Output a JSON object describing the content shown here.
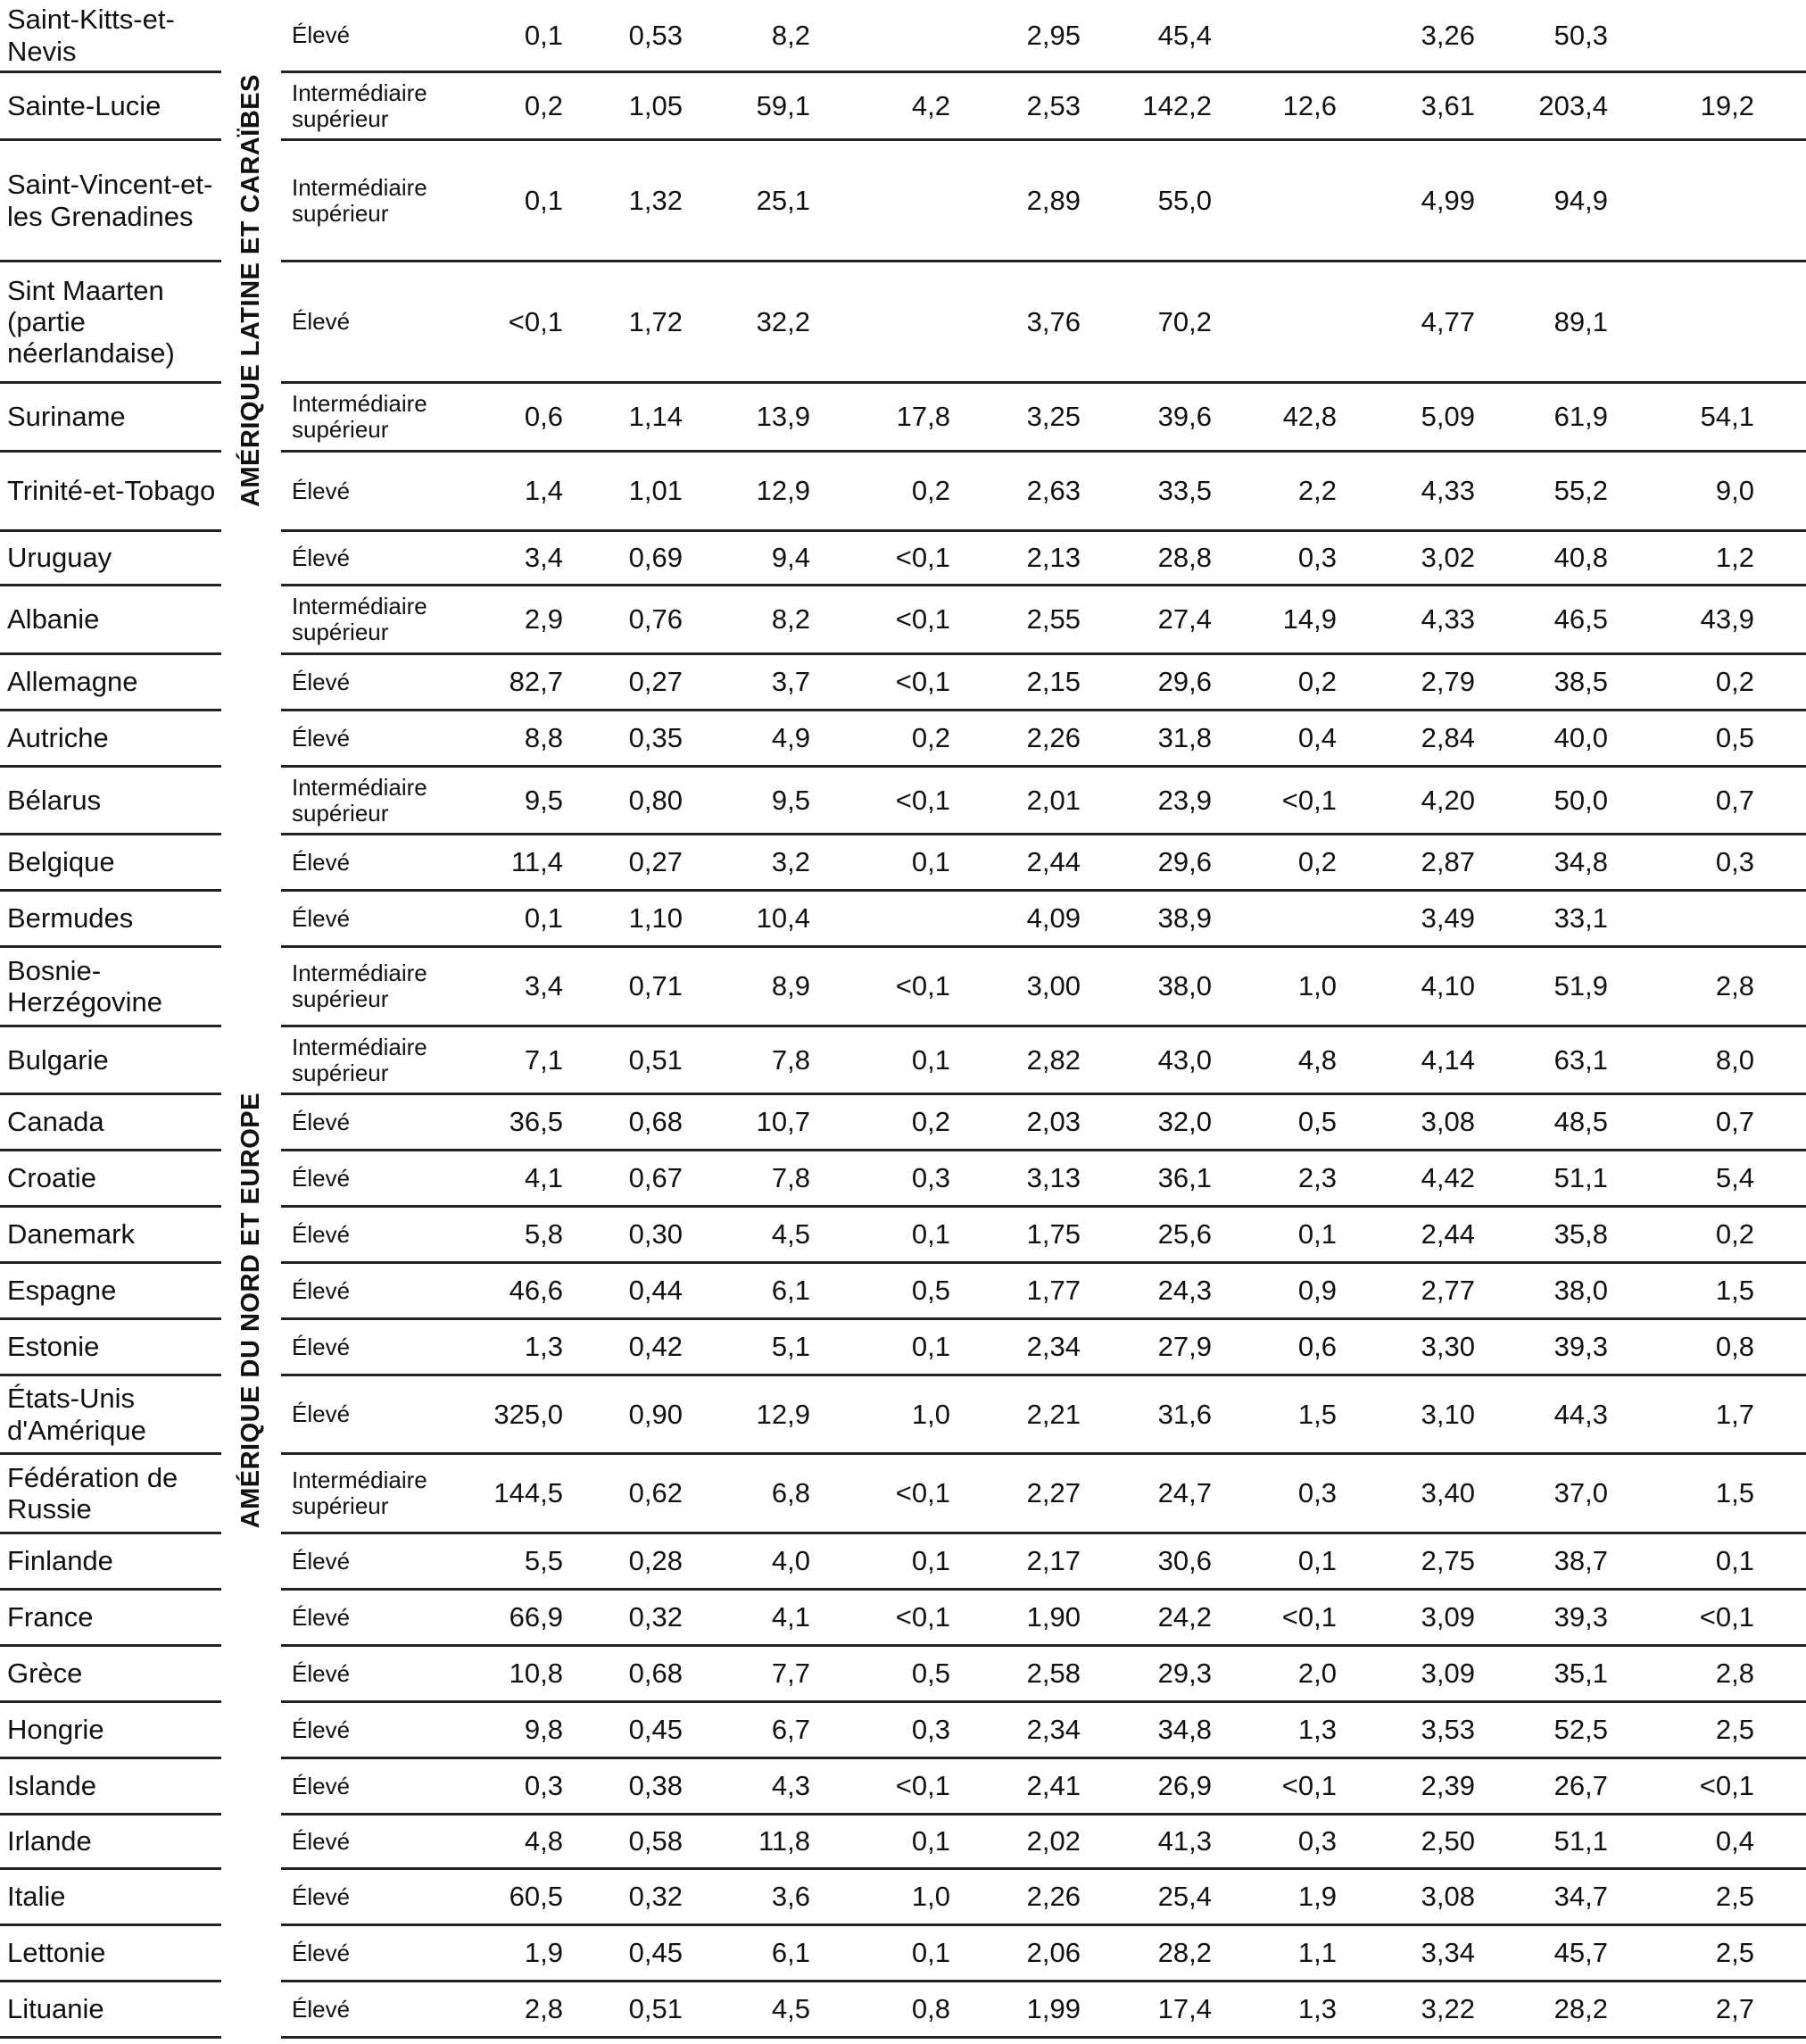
{
  "table": {
    "sections": [
      {
        "region": "AMÉRIQUE LATINE ET CARAÏBES",
        "rows": [
          {
            "country": "Saint-Kitts-et-Nevis",
            "income": "Élevé",
            "values": [
              "0,1",
              "0,53",
              "8,2",
              null,
              "2,95",
              "45,4",
              null,
              "3,26",
              "50,3",
              null
            ]
          },
          {
            "country": "Sainte-Lucie",
            "income": "Intermédiaire supérieur",
            "values": [
              "0,2",
              "1,05",
              "59,1",
              "4,2",
              "2,53",
              "142,2",
              "12,6",
              "3,61",
              "203,4",
              "19,2"
            ]
          },
          {
            "country": "Saint-Vincent-et-les Grenadines",
            "income": "Intermédiaire supérieur",
            "values": [
              "0,1",
              "1,32",
              "25,1",
              null,
              "2,89",
              "55,0",
              null,
              "4,99",
              "94,9",
              null
            ]
          },
          {
            "country": "Sint Maarten (partie néerlandaise)",
            "income": "Élevé",
            "values": [
              "<0,1",
              "1,72",
              "32,2",
              null,
              "3,76",
              "70,2",
              null,
              "4,77",
              "89,1",
              null
            ]
          },
          {
            "country": "Suriname",
            "income": "Intermédiaire supérieur",
            "values": [
              "0,6",
              "1,14",
              "13,9",
              "17,8",
              "3,25",
              "39,6",
              "42,8",
              "5,09",
              "61,9",
              "54,1"
            ]
          },
          {
            "country": "Trinité-et-Tobago",
            "income": "Élevé",
            "values": [
              "1,4",
              "1,01",
              "12,9",
              "0,2",
              "2,63",
              "33,5",
              "2,2",
              "4,33",
              "55,2",
              "9,0"
            ]
          },
          {
            "country": "Uruguay",
            "income": "Élevé",
            "values": [
              "3,4",
              "0,69",
              "9,4",
              "<0,1",
              "2,13",
              "28,8",
              "0,3",
              "3,02",
              "40,8",
              "1,2"
            ]
          }
        ]
      },
      {
        "region": "AMÉRIQUE DU NORD ET EUROPE",
        "rows": [
          {
            "country": "Albanie",
            "income": "Intermédiaire supérieur",
            "values": [
              "2,9",
              "0,76",
              "8,2",
              "<0,1",
              "2,55",
              "27,4",
              "14,9",
              "4,33",
              "46,5",
              "43,9"
            ]
          },
          {
            "country": "Allemagne",
            "income": "Élevé",
            "values": [
              "82,7",
              "0,27",
              "3,7",
              "<0,1",
              "2,15",
              "29,6",
              "0,2",
              "2,79",
              "38,5",
              "0,2"
            ]
          },
          {
            "country": "Autriche",
            "income": "Élevé",
            "values": [
              "8,8",
              "0,35",
              "4,9",
              "0,2",
              "2,26",
              "31,8",
              "0,4",
              "2,84",
              "40,0",
              "0,5"
            ]
          },
          {
            "country": "Bélarus",
            "income": "Intermédiaire supérieur",
            "values": [
              "9,5",
              "0,80",
              "9,5",
              "<0,1",
              "2,01",
              "23,9",
              "<0,1",
              "4,20",
              "50,0",
              "0,7"
            ]
          },
          {
            "country": "Belgique",
            "income": "Élevé",
            "values": [
              "11,4",
              "0,27",
              "3,2",
              "0,1",
              "2,44",
              "29,6",
              "0,2",
              "2,87",
              "34,8",
              "0,3"
            ]
          },
          {
            "country": "Bermudes",
            "income": "Élevé",
            "values": [
              "0,1",
              "1,10",
              "10,4",
              null,
              "4,09",
              "38,9",
              null,
              "3,49",
              "33,1",
              null
            ]
          },
          {
            "country": "Bosnie-Herzégovine",
            "income": "Intermédiaire supérieur",
            "values": [
              "3,4",
              "0,71",
              "8,9",
              "<0,1",
              "3,00",
              "38,0",
              "1,0",
              "4,10",
              "51,9",
              "2,8"
            ]
          },
          {
            "country": "Bulgarie",
            "income": "Intermédiaire supérieur",
            "values": [
              "7,1",
              "0,51",
              "7,8",
              "0,1",
              "2,82",
              "43,0",
              "4,8",
              "4,14",
              "63,1",
              "8,0"
            ]
          },
          {
            "country": "Canada",
            "income": "Élevé",
            "values": [
              "36,5",
              "0,68",
              "10,7",
              "0,2",
              "2,03",
              "32,0",
              "0,5",
              "3,08",
              "48,5",
              "0,7"
            ]
          },
          {
            "country": "Croatie",
            "income": "Élevé",
            "values": [
              "4,1",
              "0,67",
              "7,8",
              "0,3",
              "3,13",
              "36,1",
              "2,3",
              "4,42",
              "51,1",
              "5,4"
            ]
          },
          {
            "country": "Danemark",
            "income": "Élevé",
            "values": [
              "5,8",
              "0,30",
              "4,5",
              "0,1",
              "1,75",
              "25,6",
              "0,1",
              "2,44",
              "35,8",
              "0,2"
            ]
          },
          {
            "country": "Espagne",
            "income": "Élevé",
            "values": [
              "46,6",
              "0,44",
              "6,1",
              "0,5",
              "1,77",
              "24,3",
              "0,9",
              "2,77",
              "38,0",
              "1,5"
            ]
          },
          {
            "country": "Estonie",
            "income": "Élevé",
            "values": [
              "1,3",
              "0,42",
              "5,1",
              "0,1",
              "2,34",
              "27,9",
              "0,6",
              "3,30",
              "39,3",
              "0,8"
            ]
          },
          {
            "country": "États-Unis d'Amérique",
            "income": "Élevé",
            "values": [
              "325,0",
              "0,90",
              "12,9",
              "1,0",
              "2,21",
              "31,6",
              "1,5",
              "3,10",
              "44,3",
              "1,7"
            ]
          },
          {
            "country": "Fédération de Russie",
            "income": "Intermédiaire supérieur",
            "values": [
              "144,5",
              "0,62",
              "6,8",
              "<0,1",
              "2,27",
              "24,7",
              "0,3",
              "3,40",
              "37,0",
              "1,5"
            ]
          },
          {
            "country": "Finlande",
            "income": "Élevé",
            "values": [
              "5,5",
              "0,28",
              "4,0",
              "0,1",
              "2,17",
              "30,6",
              "0,1",
              "2,75",
              "38,7",
              "0,1"
            ]
          },
          {
            "country": "France",
            "income": "Élevé",
            "values": [
              "66,9",
              "0,32",
              "4,1",
              "<0,1",
              "1,90",
              "24,2",
              "<0,1",
              "3,09",
              "39,3",
              "<0,1"
            ]
          },
          {
            "country": "Grèce",
            "income": "Élevé",
            "values": [
              "10,8",
              "0,68",
              "7,7",
              "0,5",
              "2,58",
              "29,3",
              "2,0",
              "3,09",
              "35,1",
              "2,8"
            ]
          },
          {
            "country": "Hongrie",
            "income": "Élevé",
            "values": [
              "9,8",
              "0,45",
              "6,7",
              "0,3",
              "2,34",
              "34,8",
              "1,3",
              "3,53",
              "52,5",
              "2,5"
            ]
          },
          {
            "country": "Islande",
            "income": "Élevé",
            "values": [
              "0,3",
              "0,38",
              "4,3",
              "<0,1",
              "2,41",
              "26,9",
              "<0,1",
              "2,39",
              "26,7",
              "<0,1"
            ]
          },
          {
            "country": "Irlande",
            "income": "Élevé",
            "values": [
              "4,8",
              "0,58",
              "11,8",
              "0,1",
              "2,02",
              "41,3",
              "0,3",
              "2,50",
              "51,1",
              "0,4"
            ]
          },
          {
            "country": "Italie",
            "income": "Élevé",
            "values": [
              "60,5",
              "0,32",
              "3,6",
              "1,0",
              "2,26",
              "25,4",
              "1,9",
              "3,08",
              "34,7",
              "2,5"
            ]
          },
          {
            "country": "Lettonie",
            "income": "Élevé",
            "values": [
              "1,9",
              "0,45",
              "6,1",
              "0,1",
              "2,06",
              "28,2",
              "1,1",
              "3,34",
              "45,7",
              "2,5"
            ]
          },
          {
            "country": "Lituanie",
            "income": "Élevé",
            "values": [
              "2,8",
              "0,51",
              "4,5",
              "0,8",
              "1,99",
              "17,4",
              "1,3",
              "3,22",
              "28,2",
              "2,7"
            ]
          }
        ]
      }
    ]
  }
}
